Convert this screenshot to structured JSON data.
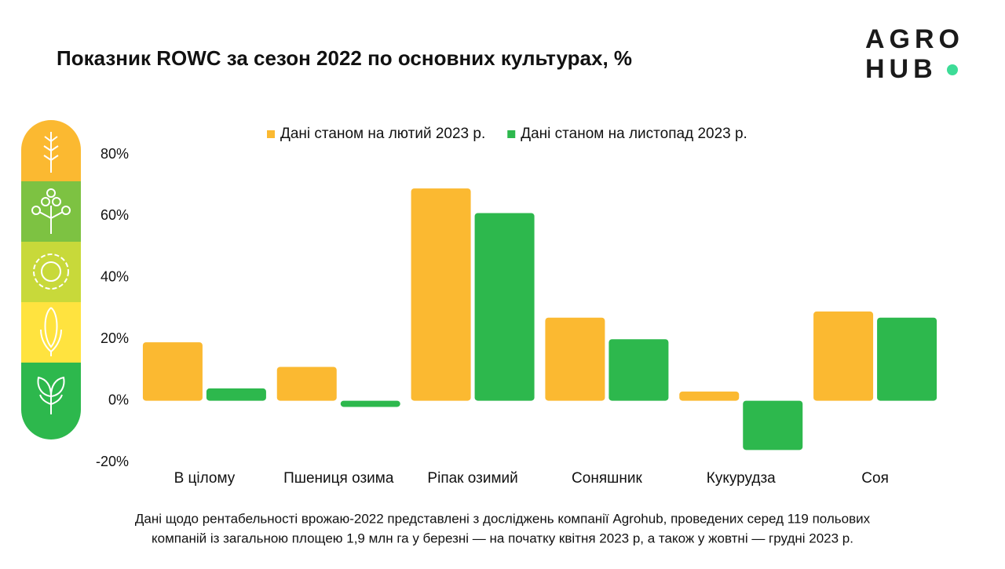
{
  "chart_data": {
    "type": "bar",
    "title": "Показник ROWC за сезон 2022 по основних культурах, %",
    "categories": [
      "В цілому",
      "Пшениця озима",
      "Ріпак озимий",
      "Соняшник",
      "Кукурудза",
      "Соя"
    ],
    "series": [
      {
        "name": "Дані станом на лютий 2023 р.",
        "color": "#fbb931",
        "values": [
          19,
          11,
          69,
          27,
          3,
          29
        ]
      },
      {
        "name": "Дані станом на листопад 2023 р.",
        "color": "#2db84d",
        "values": [
          4,
          -2,
          61,
          20,
          -16,
          27
        ]
      }
    ],
    "ylim": [
      -20,
      80
    ],
    "yticks": [
      {
        "value": -20,
        "label": "-20%"
      },
      {
        "value": 0,
        "label": "0%"
      },
      {
        "value": 20,
        "label": "20%"
      },
      {
        "value": 40,
        "label": "40%"
      },
      {
        "value": 60,
        "label": "60%"
      },
      {
        "value": 80,
        "label": "80%"
      }
    ],
    "grid": false,
    "legend": "top"
  },
  "logo": {
    "line1": "AGRO",
    "line2": "HUB"
  },
  "footnote": [
    "Дані щодо рентабельності врожаю-2022 представлені з досліджень компанії Agrohub, проведених серед 119 польових",
    "компаній із загальною площею 1,9 млн га у березні — на початку квітня 2023 р, а також у жовтні — грудні 2023 р."
  ]
}
